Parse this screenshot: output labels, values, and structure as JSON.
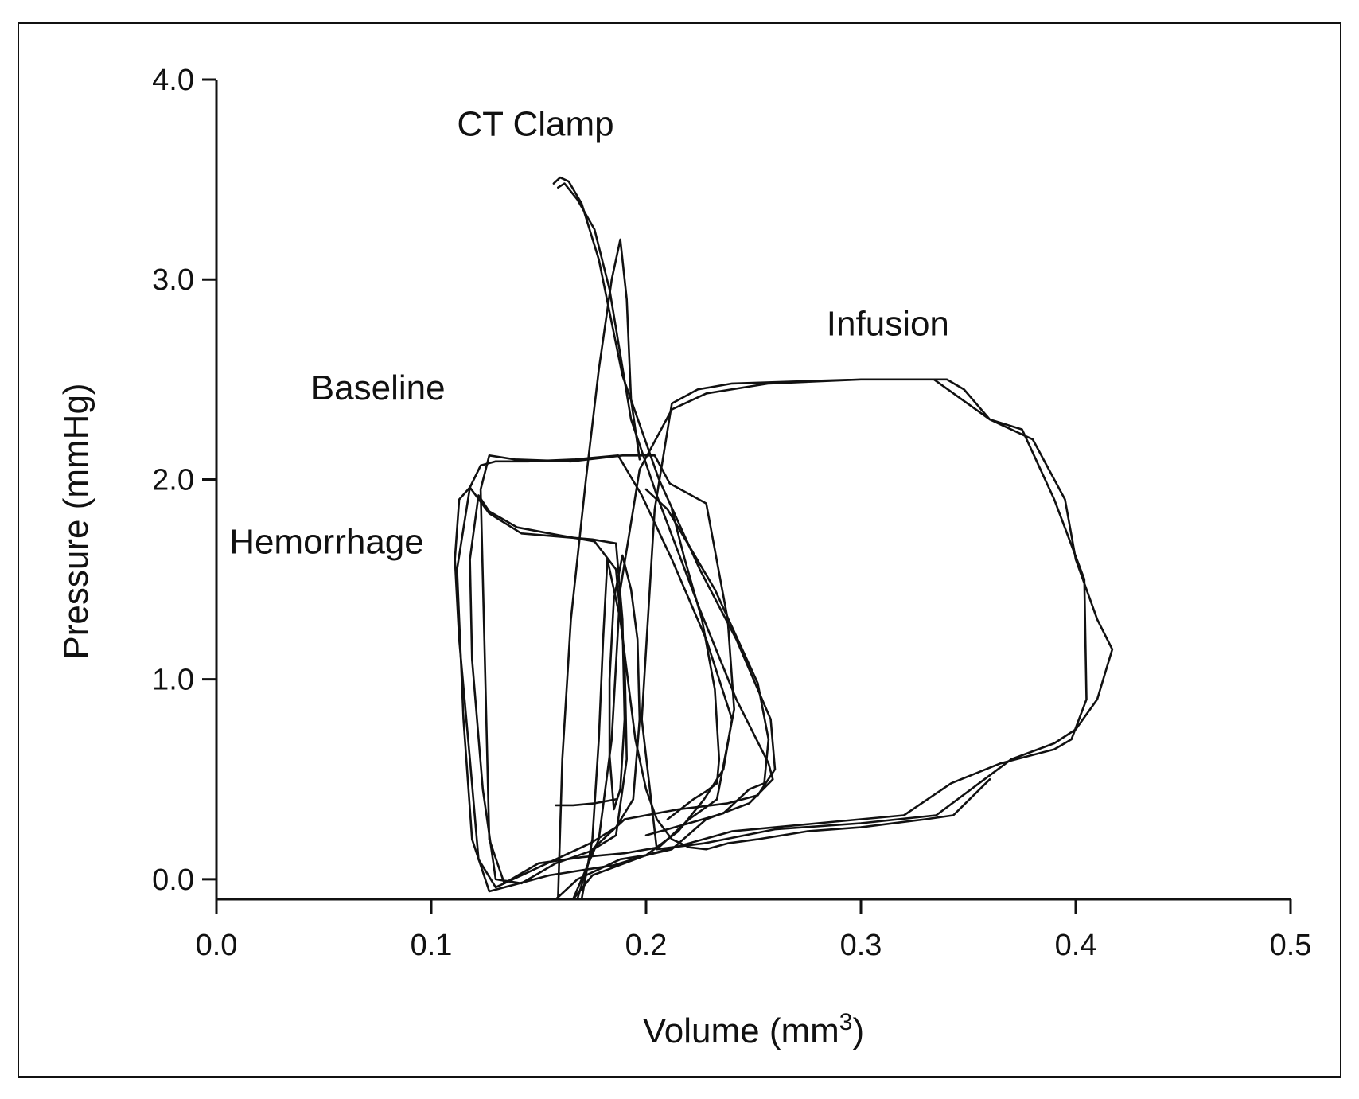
{
  "chart_data": {
    "type": "line",
    "title": "",
    "xlabel": "Volume (mm",
    "xlabel_sup": "3",
    "xlabel_close": ")",
    "ylabel": "Pressure (mmHg)",
    "xlim": [
      0.0,
      0.5
    ],
    "ylim": [
      -0.1,
      4.0
    ],
    "x_ticks": [
      "0.0",
      "0.1",
      "0.2",
      "0.3",
      "0.4",
      "0.5"
    ],
    "y_ticks": [
      "0.0",
      "1.0",
      "2.0",
      "3.0",
      "4.0"
    ],
    "grid": false,
    "legend": "none",
    "line_color": "#111111",
    "annotations": [
      {
        "text": "CT Clamp",
        "x": 0.112,
        "y": 3.72
      },
      {
        "text": "Infusion",
        "x": 0.284,
        "y": 2.72
      },
      {
        "text": "Baseline",
        "x": 0.044,
        "y": 2.4
      },
      {
        "text": "Hemorrhage",
        "x": 0.006,
        "y": 1.63
      }
    ],
    "series": [
      {
        "x": [
          0.186,
          0.175,
          0.142,
          0.127,
          0.118,
          0.113,
          0.111,
          0.113,
          0.118,
          0.122,
          0.13,
          0.142,
          0.158,
          0.174,
          0.186,
          0.194,
          0.197,
          0.196,
          0.193,
          0.189,
          0.185,
          0.183,
          0.183,
          0.185,
          0.188,
          0.19,
          0.189,
          0.186
        ],
        "y": [
          1.68,
          1.7,
          1.73,
          1.83,
          1.96,
          1.9,
          1.6,
          1.2,
          0.6,
          0.1,
          -0.04,
          0.02,
          0.1,
          0.18,
          0.26,
          0.4,
          0.8,
          1.2,
          1.45,
          1.62,
          1.4,
          1.0,
          0.62,
          0.35,
          0.45,
          0.8,
          1.3,
          1.68
        ]
      },
      {
        "x": [
          0.127,
          0.122,
          0.118,
          0.119,
          0.124,
          0.13,
          0.142,
          0.158,
          0.174,
          0.186,
          0.191,
          0.19,
          0.186,
          0.176,
          0.16,
          0.14,
          0.127
        ],
        "y": [
          1.84,
          1.92,
          1.6,
          1.1,
          0.45,
          0.0,
          -0.02,
          0.08,
          0.14,
          0.22,
          0.6,
          1.1,
          1.55,
          1.69,
          1.72,
          1.76,
          1.84
        ]
      },
      {
        "x": [
          0.112,
          0.118,
          0.123,
          0.13,
          0.145,
          0.167,
          0.187,
          0.198,
          0.212,
          0.228,
          0.24,
          0.236,
          0.227,
          0.215,
          0.2,
          0.185,
          0.155,
          0.127,
          0.119,
          0.115,
          0.112
        ],
        "y": [
          1.55,
          1.96,
          2.07,
          2.09,
          2.09,
          2.1,
          2.12,
          1.92,
          1.6,
          1.2,
          0.8,
          0.55,
          0.4,
          0.24,
          0.12,
          0.07,
          0.02,
          -0.06,
          0.2,
          0.8,
          1.55
        ]
      },
      {
        "x": [
          0.123,
          0.127,
          0.139,
          0.165,
          0.189,
          0.204,
          0.211,
          0.228,
          0.238,
          0.241,
          0.233,
          0.22,
          0.206,
          0.19,
          0.17,
          0.15,
          0.134,
          0.127,
          0.123
        ],
        "y": [
          1.95,
          2.12,
          2.1,
          2.09,
          2.12,
          2.12,
          1.98,
          1.88,
          1.3,
          0.85,
          0.4,
          0.3,
          0.16,
          0.13,
          0.11,
          0.08,
          -0.02,
          0.2,
          1.95
        ]
      },
      {
        "x": [
          0.2,
          0.21,
          0.232,
          0.252,
          0.257,
          0.255,
          0.248,
          0.236,
          0.22,
          0.2
        ],
        "y": [
          1.95,
          1.85,
          1.45,
          0.98,
          0.7,
          0.48,
          0.45,
          0.33,
          0.28,
          0.22
        ]
      },
      {
        "x": [
          0.157,
          0.16,
          0.164,
          0.17,
          0.178,
          0.189,
          0.206,
          0.225,
          0.242,
          0.258,
          0.26,
          0.252,
          0.238,
          0.215,
          0.19,
          0.175,
          0.168
        ],
        "y": [
          3.48,
          3.51,
          3.49,
          3.38,
          3.1,
          2.52,
          2.0,
          1.55,
          1.2,
          0.8,
          0.55,
          0.42,
          0.38,
          0.35,
          0.3,
          0.15,
          -0.1
        ]
      },
      {
        "x": [
          0.159,
          0.162,
          0.168,
          0.176,
          0.183,
          0.193,
          0.205,
          0.225,
          0.242,
          0.257,
          0.259,
          0.248,
          0.228,
          0.212,
          0.2,
          0.188,
          0.168,
          0.158
        ],
        "y": [
          3.46,
          3.48,
          3.4,
          3.25,
          2.95,
          2.3,
          1.92,
          1.35,
          0.9,
          0.58,
          0.5,
          0.38,
          0.3,
          0.15,
          0.12,
          0.1,
          0.0,
          -0.1
        ]
      },
      {
        "x": [
          0.159,
          0.161,
          0.165,
          0.172,
          0.178,
          0.184,
          0.188,
          0.191,
          0.193,
          0.197
        ],
        "y": [
          -0.1,
          0.6,
          1.3,
          2.0,
          2.55,
          3.0,
          3.2,
          2.9,
          2.4,
          2.1
        ]
      },
      {
        "x": [
          0.166,
          0.17,
          0.178,
          0.184,
          0.188,
          0.197,
          0.212,
          0.228,
          0.257,
          0.3,
          0.34,
          0.348,
          0.36,
          0.38,
          0.395,
          0.4,
          0.41,
          0.417,
          0.41,
          0.4,
          0.39,
          0.37,
          0.355,
          0.335,
          0.3,
          0.26,
          0.227,
          0.205,
          0.198,
          0.204,
          0.212,
          0.224,
          0.24,
          0.27,
          0.3,
          0.334,
          0.36,
          0.375,
          0.39,
          0.404,
          0.405,
          0.398,
          0.39,
          0.365,
          0.342,
          0.32,
          0.28,
          0.24,
          0.2,
          0.175,
          0.166
        ],
        "y": [
          -0.1,
          0.0,
          0.2,
          0.7,
          1.45,
          2.05,
          2.35,
          2.43,
          2.48,
          2.5,
          2.5,
          2.45,
          2.3,
          2.2,
          1.9,
          1.6,
          1.3,
          1.15,
          0.9,
          0.75,
          0.68,
          0.6,
          0.48,
          0.32,
          0.28,
          0.25,
          0.18,
          0.15,
          0.8,
          1.85,
          2.38,
          2.45,
          2.48,
          2.49,
          2.5,
          2.5,
          2.3,
          2.25,
          1.9,
          1.5,
          0.9,
          0.7,
          0.65,
          0.58,
          0.48,
          0.32,
          0.28,
          0.24,
          0.12,
          0.02,
          -0.1
        ]
      },
      {
        "x": [
          0.17,
          0.175,
          0.178,
          0.18,
          0.182,
          0.188,
          0.195,
          0.2,
          0.205,
          0.212,
          0.22,
          0.228,
          0.238,
          0.252,
          0.275,
          0.3,
          0.33,
          0.343,
          0.36
        ],
        "y": [
          -0.1,
          0.2,
          0.7,
          1.2,
          1.6,
          1.3,
          0.7,
          0.45,
          0.3,
          0.2,
          0.16,
          0.15,
          0.18,
          0.2,
          0.24,
          0.26,
          0.3,
          0.32,
          0.5
        ]
      },
      {
        "x": [
          0.212,
          0.218,
          0.226,
          0.232,
          0.234,
          0.233,
          0.228,
          0.222,
          0.21
        ],
        "y": [
          1.85,
          1.6,
          1.3,
          0.95,
          0.6,
          0.48,
          0.44,
          0.4,
          0.3
        ]
      },
      {
        "x": [
          0.158,
          0.166,
          0.176,
          0.186
        ],
        "y": [
          0.37,
          0.37,
          0.38,
          0.4
        ]
      }
    ]
  }
}
